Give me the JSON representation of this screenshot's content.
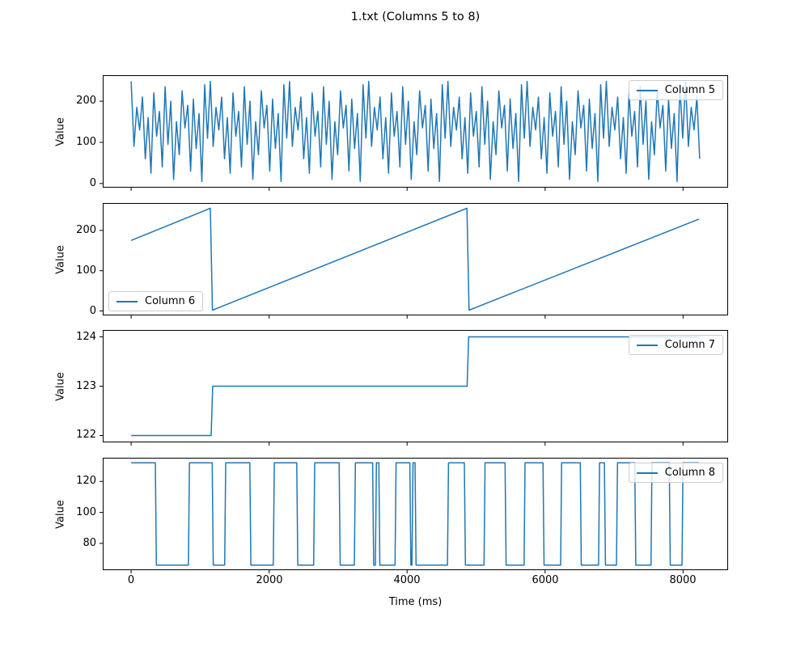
{
  "figure": {
    "title": "1.txt (Columns 5 to 8)",
    "background": "#ffffff",
    "line_color": "#1f77b4",
    "spine_color": "#000000"
  },
  "xaxis": {
    "label": "Time (ms)",
    "ticks": [
      0,
      2000,
      4000,
      6000,
      8000
    ],
    "xlim": [
      -412,
      8653
    ]
  },
  "chart_data": [
    {
      "type": "line",
      "series": "Column 5",
      "ylabel": "Value",
      "legend_position": "top-right",
      "yticks": [
        0,
        100,
        200
      ],
      "ylim": [
        -10,
        263
      ],
      "sample_interval_ms": 41,
      "values": [
        248,
        90,
        185,
        130,
        210,
        60,
        160,
        25,
        220,
        115,
        175,
        40,
        235,
        95,
        200,
        10,
        150,
        70,
        225,
        135,
        190,
        30,
        205,
        85,
        170,
        5,
        240,
        110,
        248,
        90,
        185,
        130,
        210,
        60,
        160,
        25,
        220,
        115,
        175,
        40,
        235,
        95,
        200,
        10,
        150,
        70,
        225,
        135,
        190,
        30,
        205,
        85,
        170,
        5,
        240,
        110,
        248,
        90,
        185,
        130,
        210,
        60,
        160,
        25,
        220,
        115,
        175,
        40,
        235,
        95,
        200,
        10,
        150,
        70,
        225,
        135,
        190,
        30,
        205,
        85,
        170,
        5,
        240,
        110,
        248,
        90,
        185,
        130,
        210,
        60,
        160,
        25,
        220,
        115,
        175,
        40,
        235,
        95,
        200,
        10,
        150,
        70,
        225,
        135,
        190,
        30,
        205,
        85,
        170,
        5,
        240,
        110,
        248,
        90,
        185,
        130,
        210,
        60,
        160,
        25,
        220,
        115,
        175,
        40,
        235,
        95,
        200,
        10,
        150,
        70,
        225,
        135,
        190,
        30,
        205,
        85,
        170,
        5,
        240,
        110,
        248,
        90,
        185,
        130,
        210,
        60,
        160,
        25,
        220,
        115,
        175,
        40,
        235,
        95,
        200,
        10,
        150,
        70,
        225,
        135,
        190,
        30,
        205,
        85,
        170,
        5,
        240,
        110,
        248,
        90,
        185,
        130,
        210,
        60,
        160,
        25,
        220,
        115,
        175,
        40,
        235,
        95,
        200,
        10,
        150,
        70,
        225,
        135,
        190,
        30,
        205,
        85,
        170,
        5,
        240,
        110,
        248,
        90,
        185,
        130,
        210,
        60
      ]
    },
    {
      "type": "line",
      "series": "Column 6",
      "ylabel": "Value",
      "legend_position": "bottom-left",
      "yticks": [
        0,
        100,
        200
      ],
      "ylim": [
        -11,
        268
      ],
      "points": [
        [
          0,
          175
        ],
        [
          1148,
          255
        ],
        [
          1178,
          2
        ],
        [
          4868,
          255
        ],
        [
          4898,
          2
        ],
        [
          8230,
          228
        ]
      ]
    },
    {
      "type": "line",
      "series": "Column 7",
      "ylabel": "Value",
      "legend_position": "top-right",
      "yticks": [
        122,
        123,
        124
      ],
      "ylim": [
        121.86,
        124.14
      ],
      "points": [
        [
          0,
          122
        ],
        [
          1160,
          122
        ],
        [
          1182,
          123
        ],
        [
          4870,
          123
        ],
        [
          4892,
          124
        ],
        [
          8230,
          124
        ]
      ]
    },
    {
      "type": "line",
      "series": "Column 8",
      "ylabel": "Value",
      "legend_position": "top-right",
      "yticks": [
        80,
        100,
        120
      ],
      "ylim": [
        62.7,
        135.3
      ],
      "high": 132,
      "low": 66,
      "ramp_ms": 15,
      "data_end": 8230,
      "high_intervals": [
        [
          0,
          350
        ],
        [
          845,
          1175
        ],
        [
          1370,
          1720
        ],
        [
          2075,
          2400
        ],
        [
          2660,
          3015
        ],
        [
          3250,
          3500
        ],
        [
          3555,
          3590
        ],
        [
          3840,
          4040
        ],
        [
          4085,
          4115
        ],
        [
          4600,
          4830
        ],
        [
          5130,
          5420
        ],
        [
          5710,
          5970
        ],
        [
          6240,
          6510
        ],
        [
          6790,
          6860
        ],
        [
          7050,
          7300
        ],
        [
          7550,
          7800
        ],
        [
          8000,
          8230
        ]
      ]
    }
  ]
}
